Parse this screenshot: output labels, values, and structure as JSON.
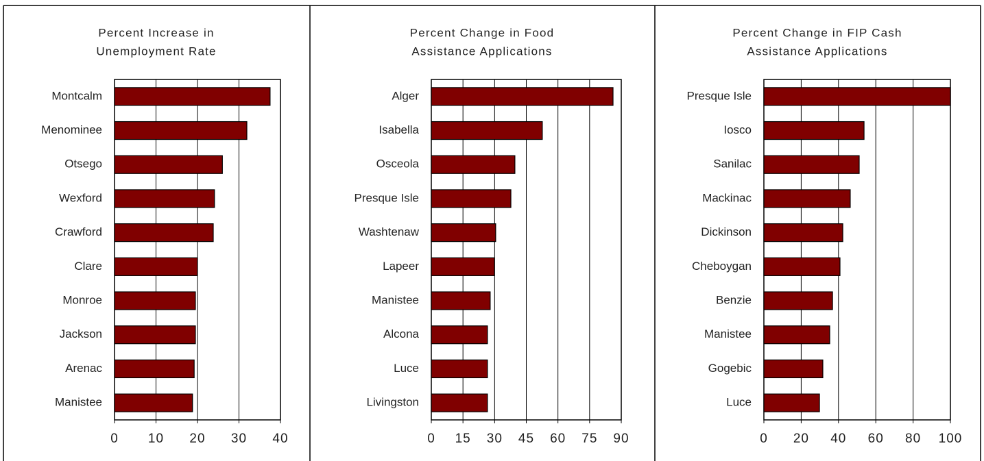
{
  "chart_data": [
    {
      "type": "barh",
      "title": [
        "Percent Increase in",
        "Unemployment Rate"
      ],
      "categories": [
        "Montcalm",
        "Menominee",
        "Otsego",
        "Wexford",
        "Crawford",
        "Clare",
        "Monroe",
        "Jackson",
        "Arenac",
        "Manistee"
      ],
      "values": [
        37.5,
        31.9,
        26,
        24.1,
        23.8,
        20,
        19.5,
        19.5,
        19.2,
        18.8
      ],
      "color": "#800000",
      "xlim": [
        0,
        40
      ],
      "xticks": [
        0,
        10,
        20,
        30,
        40
      ],
      "grid": true
    },
    {
      "type": "barh",
      "title": [
        "Percent Change in Food",
        "Assistance Applications"
      ],
      "categories": [
        "Alger",
        "Isabella",
        "Osceola",
        "Presque Isle",
        "Washtenaw",
        "Lapeer",
        "Manistee",
        "Alcona",
        "Luce",
        "Livingston"
      ],
      "values": [
        86.1,
        52.6,
        39.6,
        37.7,
        30.5,
        29.9,
        27.9,
        26.6,
        26.6,
        26.6
      ],
      "color": "#800000",
      "xlim": [
        0,
        90
      ],
      "xticks": [
        0,
        15,
        30,
        45,
        60,
        75,
        90
      ],
      "grid": true
    },
    {
      "type": "barh",
      "title": [
        "Percent Change in FIP Cash",
        "Assistance Applications"
      ],
      "categories": [
        "Presque Isle",
        "Iosco",
        "Sanilac",
        "Mackinac",
        "Dickinson",
        "Cheboygan",
        "Benzie",
        "Manistee",
        "Gogebic",
        "Luce"
      ],
      "values": [
        100,
        53.7,
        51.1,
        46.3,
        42.3,
        40.8,
        36.8,
        35.3,
        31.6,
        29.8
      ],
      "color": "#800000",
      "xlim": [
        0,
        100
      ],
      "xticks": [
        0,
        20,
        40,
        60,
        80,
        100
      ],
      "grid": true
    }
  ]
}
